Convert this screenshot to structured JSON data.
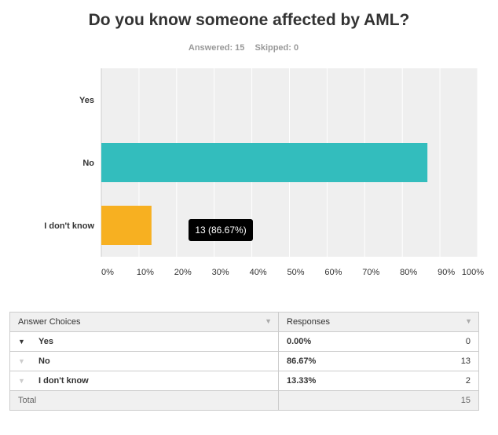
{
  "title": "Do you know someone affected by AML?",
  "answered": "Answered: 15",
  "skipped": "Skipped: 0",
  "chart_data": {
    "type": "bar",
    "orientation": "horizontal",
    "categories": [
      "Yes",
      "No",
      "I don't know"
    ],
    "values": [
      0.0,
      86.67,
      13.33
    ],
    "colors": [
      "#ffffff",
      "#33bdbd",
      "#f7b021"
    ],
    "xlim": [
      0,
      100
    ],
    "xticks": [
      "0%",
      "10%",
      "20%",
      "30%",
      "40%",
      "50%",
      "60%",
      "70%",
      "80%",
      "90%",
      "100%"
    ],
    "grid": true,
    "tooltip": "13 (86.67%)"
  },
  "table": {
    "header_choices": "Answer Choices",
    "header_responses": "Responses",
    "rows": [
      {
        "label": "Yes",
        "percent": "0.00%",
        "count": "0"
      },
      {
        "label": "No",
        "percent": "86.67%",
        "count": "13"
      },
      {
        "label": "I don't know",
        "percent": "13.33%",
        "count": "2"
      }
    ],
    "total_label": "Total",
    "total_count": "15"
  }
}
